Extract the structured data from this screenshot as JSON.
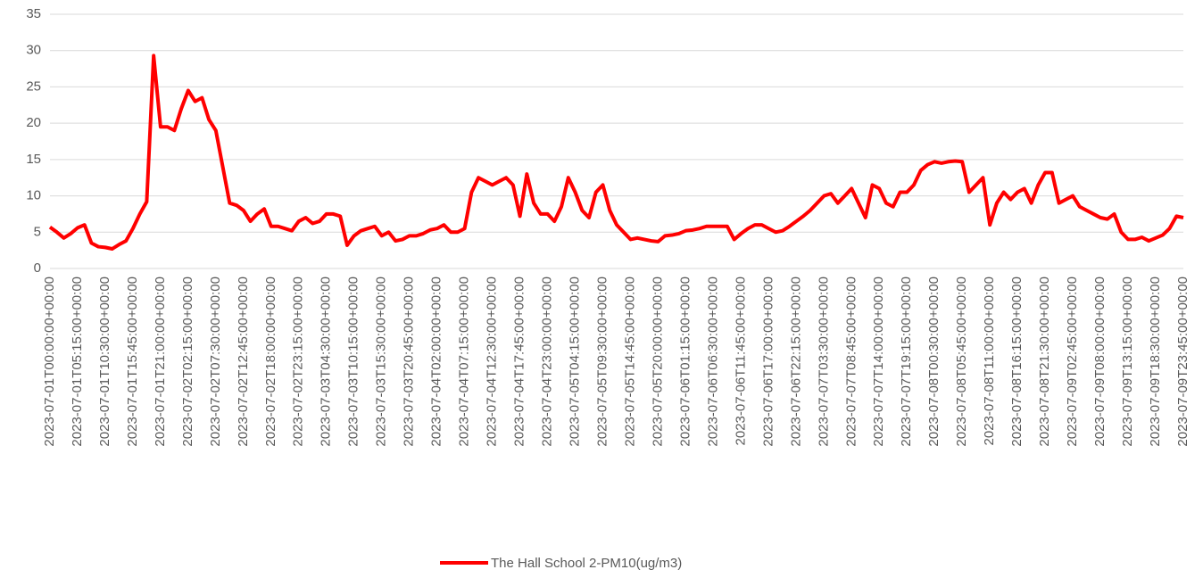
{
  "chart_data": {
    "type": "line",
    "categories": [
      "2023-07-01T00:00:00+00:00",
      null,
      null,
      null,
      "2023-07-01T05:15:00+00:00",
      null,
      null,
      null,
      "2023-07-01T10:30:00+00:00",
      null,
      null,
      null,
      "2023-07-01T15:45:00+00:00",
      null,
      null,
      null,
      "2023-07-01T21:00:00+00:00",
      null,
      null,
      null,
      "2023-07-02T02:15:00+00:00",
      null,
      null,
      null,
      "2023-07-02T07:30:00+00:00",
      null,
      null,
      null,
      "2023-07-02T12:45:00+00:00",
      null,
      null,
      null,
      "2023-07-02T18:00:00+00:00",
      null,
      null,
      null,
      "2023-07-02T23:15:00+00:00",
      null,
      null,
      null,
      "2023-07-03T04:30:00+00:00",
      null,
      null,
      null,
      "2023-07-03T10:15:00+00:00",
      null,
      null,
      null,
      "2023-07-03T15:30:00+00:00",
      null,
      null,
      null,
      "2023-07-03T20:45:00+00:00",
      null,
      null,
      null,
      "2023-07-04T02:00:00+00:00",
      null,
      null,
      null,
      "2023-07-04T07:15:00+00:00",
      null,
      null,
      null,
      "2023-07-04T12:30:00+00:00",
      null,
      null,
      null,
      "2023-07-04T17:45:00+00:00",
      null,
      null,
      null,
      "2023-07-04T23:00:00+00:00",
      null,
      null,
      null,
      "2023-07-05T04:15:00+00:00",
      null,
      null,
      null,
      "2023-07-05T09:30:00+00:00",
      null,
      null,
      null,
      "2023-07-05T14:45:00+00:00",
      null,
      null,
      null,
      "2023-07-05T20:00:00+00:00",
      null,
      null,
      null,
      "2023-07-06T01:15:00+00:00",
      null,
      null,
      null,
      "2023-07-06T06:30:00+00:00",
      null,
      null,
      null,
      "2023-07-06T11:45:00+00:00",
      null,
      null,
      null,
      "2023-07-06T17:00:00+00:00",
      null,
      null,
      null,
      "2023-07-06T22:15:00+00:00",
      null,
      null,
      null,
      "2023-07-07T03:30:00+00:00",
      null,
      null,
      null,
      "2023-07-07T08:45:00+00:00",
      null,
      null,
      null,
      "2023-07-07T14:00:00+00:00",
      null,
      null,
      null,
      "2023-07-07T19:15:00+00:00",
      null,
      null,
      null,
      "2023-07-08T00:30:00+00:00",
      null,
      null,
      null,
      "2023-07-08T05:45:00+00:00",
      null,
      null,
      null,
      "2023-07-08T11:00:00+00:00",
      null,
      null,
      null,
      "2023-07-08T16:15:00+00:00",
      null,
      null,
      null,
      "2023-07-08T21:30:00+00:00",
      null,
      null,
      null,
      "2023-07-09T02:45:00+00:00",
      null,
      null,
      null,
      "2023-07-09T08:00:00+00:00",
      null,
      null,
      null,
      "2023-07-09T13:15:00+00:00",
      null,
      null,
      null,
      "2023-07-09T18:30:00+00:00",
      null,
      null,
      null,
      "2023-07-09T23:45:00+00:00"
    ],
    "series": [
      {
        "name": "The Hall School 2-PM10(ug/m3)",
        "color": "#ff0000",
        "values": [
          5.7,
          5.0,
          4.2,
          4.8,
          5.6,
          6.0,
          3.5,
          3.0,
          2.9,
          2.7,
          3.3,
          3.8,
          5.5,
          7.5,
          9.2,
          29.3,
          19.5,
          19.5,
          19,
          22,
          24.5,
          23,
          23.5,
          20.5,
          19,
          14,
          9,
          8.7,
          8,
          6.5,
          7.5,
          8.2,
          5.8,
          5.8,
          5.5,
          5.2,
          6.5,
          7,
          6.2,
          6.5,
          7.5,
          7.5,
          7.2,
          3.2,
          4.5,
          5.2,
          5.5,
          5.8,
          4.5,
          5,
          3.8,
          4,
          4.5,
          4.5,
          4.8,
          5.3,
          5.5,
          6,
          5,
          5,
          5.5,
          10.5,
          12.5,
          12,
          11.5,
          12,
          12.5,
          11.5,
          7.2,
          13,
          9,
          7.5,
          7.5,
          6.5,
          8.5,
          12.5,
          10.5,
          8,
          7,
          10.5,
          11.5,
          8,
          6,
          5,
          4,
          4.2,
          4,
          3.8,
          3.7,
          4.5,
          4.6,
          4.8,
          5.2,
          5.3,
          5.5,
          5.8,
          5.8,
          5.8,
          5.8,
          4,
          4.8,
          5.5,
          6,
          6,
          5.5,
          5,
          5.2,
          5.8,
          6.5,
          7.2,
          8,
          9,
          10,
          10.3,
          9,
          10,
          11,
          9,
          7,
          11.5,
          11,
          9,
          8.5,
          10.5,
          10.5,
          11.5,
          13.5,
          14.3,
          14.7,
          14.5,
          14.7,
          14.8,
          14.7,
          10.5,
          11.5,
          12.5,
          6,
          9,
          10.5,
          9.5,
          10.5,
          11,
          9,
          11.5,
          13.2,
          13.2,
          9,
          9.5,
          10,
          8.5,
          8,
          7.5,
          7,
          6.8,
          7.5,
          5,
          4,
          4,
          4.3,
          3.8,
          4.2,
          4.6,
          5.5,
          7.2,
          7
        ]
      }
    ],
    "ylim": [
      0,
      35
    ],
    "yticks": [
      0,
      5,
      10,
      15,
      20,
      25,
      30,
      35
    ],
    "grid": true,
    "legend": "bottom"
  }
}
